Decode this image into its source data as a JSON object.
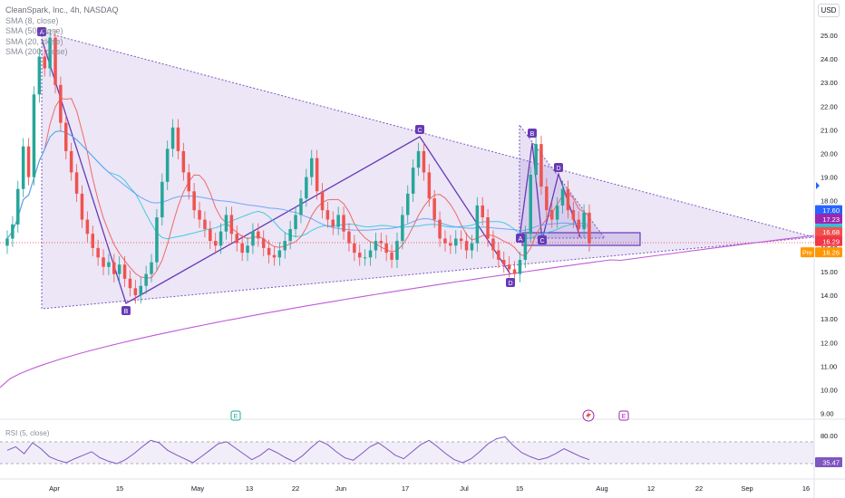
{
  "header": {
    "title": "CleanSpark, Inc., 4h, NASDAQ",
    "indicators": [
      "SMA (8, close)",
      "SMA (50, close)",
      "SMA (20, close)",
      "SMA (200, close)"
    ],
    "currency": "USD"
  },
  "price_axis": {
    "ticks": [
      "25.00",
      "24.00",
      "23.00",
      "22.00",
      "21.00",
      "20.00",
      "19.00",
      "18.00",
      "17.00",
      "16.00",
      "15.00",
      "14.00",
      "13.00",
      "12.00",
      "11.00",
      "10.00",
      "9.00"
    ],
    "tick_values": [
      25,
      24,
      23,
      22,
      21,
      20,
      19,
      18,
      17,
      16,
      15,
      14,
      13,
      12,
      11,
      10,
      9
    ],
    "badges": [
      {
        "label": "17.60",
        "value": 17.6,
        "color": "#2962ff"
      },
      {
        "label": "17.23",
        "value": 17.23,
        "color": "#9c27b0"
      },
      {
        "label": "16.81",
        "value": 16.81,
        "color": "#26c6da"
      },
      {
        "label": "16.68",
        "value": 16.68,
        "color": "#ef5350"
      },
      {
        "label": "16.29",
        "value": 16.29,
        "color": "#f23645"
      }
    ],
    "pre": {
      "label": "Pre",
      "value_label": "16.26",
      "value": 15.82
    }
  },
  "time_axis": {
    "labels": [
      "Apr",
      "15",
      "May",
      "13",
      "22",
      "Jun",
      "17",
      "Jul",
      "15",
      "Aug",
      "12",
      "22",
      "Sep",
      "16"
    ]
  },
  "rsi": {
    "legend": "RSI (5, close)",
    "levels": [
      "80.00"
    ],
    "value": "35.47",
    "level_values": [
      80
    ]
  },
  "events": [
    {
      "label": "E",
      "color": "#26a69a"
    },
    {
      "label": "E",
      "color": "#9c27b0"
    }
  ],
  "pattern_labels": [
    "A",
    "B",
    "C",
    "D",
    "A",
    "B",
    "C",
    "D"
  ],
  "chart_data": {
    "type": "line",
    "title": "CleanSpark, Inc., 4h, NASDAQ",
    "xlabel": "",
    "ylabel": "",
    "ylim": [
      9,
      25.5
    ],
    "price_series": [
      16.4,
      17.0,
      18.5,
      20.3,
      19.0,
      22.5,
      24.1,
      23.6,
      24.9,
      22.9,
      21.3,
      20.1,
      19.2,
      18.3,
      17.2,
      16.6,
      16.0,
      15.6,
      15.2,
      15.4,
      14.9,
      15.3,
      14.7,
      14.3,
      14.0,
      14.4,
      14.9,
      15.4,
      17.3,
      18.8,
      20.2,
      21.1,
      20.1,
      19.2,
      18.4,
      17.6,
      17.2,
      16.8,
      16.3,
      16.1,
      16.7,
      17.4,
      16.6,
      16.2,
      15.8,
      16.1,
      16.7,
      16.4,
      16.0,
      15.7,
      15.6,
      15.9,
      16.3,
      16.8,
      17.4,
      18.1,
      19.0,
      19.8,
      18.4,
      17.6,
      17.2,
      16.9,
      17.4,
      16.7,
      16.2,
      15.8,
      15.6,
      15.6,
      15.9,
      16.3,
      16.2,
      15.8,
      15.5,
      16.3,
      17.4,
      18.3,
      19.4,
      20.1,
      19.2,
      18.1,
      17.2,
      16.4,
      16.2,
      16.1,
      16.4,
      16.3,
      15.9,
      16.2,
      17.8,
      17.3,
      16.4,
      15.9,
      15.5,
      15.3,
      15.1,
      14.9,
      15.5,
      16.6,
      19.1,
      20.4,
      18.6,
      17.6,
      17.2,
      17.8,
      18.5,
      17.6,
      17.2,
      16.8,
      17.5,
      16.2
    ],
    "series": [
      {
        "name": "SMA (8, close)",
        "color": "#ef5350"
      },
      {
        "name": "SMA (50, close)",
        "color": "#5b9cf6"
      },
      {
        "name": "SMA (20, close)",
        "color": "#26c6da"
      },
      {
        "name": "SMA (200, close)",
        "color": "#c159d8"
      }
    ],
    "rsi_values": [
      55,
      62,
      48,
      70,
      58,
      42,
      35,
      30,
      38,
      45,
      52,
      40,
      33,
      28,
      36,
      48,
      62,
      75,
      70,
      55,
      46,
      38,
      30,
      42,
      55,
      68,
      72,
      60,
      48,
      36,
      45,
      58,
      50,
      40,
      32,
      44,
      60,
      74,
      66,
      52,
      40,
      35,
      48,
      62,
      70,
      58,
      45,
      38,
      52,
      66,
      75,
      62,
      48,
      36,
      30,
      38,
      52,
      68,
      78,
      82,
      64,
      50,
      42,
      36,
      40,
      48,
      58,
      50,
      42,
      36
    ]
  }
}
